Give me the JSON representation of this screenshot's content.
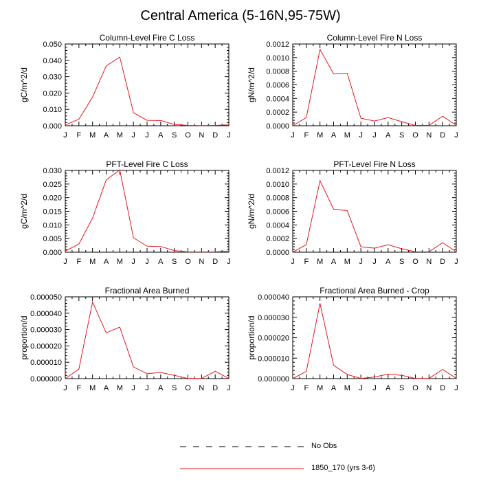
{
  "figure": {
    "title": "Central America (5-16N,95-75W)",
    "legend": [
      {
        "label": "No Obs",
        "style": "dashed",
        "color": "#000000"
      },
      {
        "label": "1850_170 (yrs 3-6)",
        "style": "solid",
        "color": "#e8141a"
      }
    ]
  },
  "chart_data": [
    {
      "type": "line",
      "title": "Column-Level Fire C Loss",
      "ylabel": "gC/m^2/d",
      "categories": [
        "J",
        "F",
        "M",
        "A",
        "M",
        "J",
        "J",
        "A",
        "S",
        "O",
        "N",
        "D",
        "J"
      ],
      "ylim": [
        0,
        0.05
      ],
      "yticks": [
        0,
        0.01,
        0.02,
        0.03,
        0.04,
        0.05
      ],
      "ytick_labels": [
        "0.000",
        "0.010",
        "0.020",
        "0.030",
        "0.040",
        "0.050"
      ],
      "series": [
        {
          "values": [
            0.0005,
            0.004,
            0.0175,
            0.0365,
            0.042,
            0.008,
            0.0033,
            0.0032,
            0.0008,
            0.0002,
            0.0001,
            0.0002,
            0.0005
          ]
        }
      ]
    },
    {
      "type": "line",
      "title": "Column-Level Fire N Loss",
      "ylabel": "gN/m^2/d",
      "categories": [
        "J",
        "F",
        "M",
        "A",
        "M",
        "J",
        "J",
        "A",
        "S",
        "O",
        "N",
        "D",
        "J"
      ],
      "ylim": [
        0,
        0.0012
      ],
      "yticks": [
        0,
        0.0002,
        0.0004,
        0.0006,
        0.0008,
        0.001,
        0.0012
      ],
      "ytick_labels": [
        "0.0000",
        "0.0002",
        "0.0004",
        "0.0006",
        "0.0008",
        "0.0010",
        "0.0012"
      ],
      "series": [
        {
          "values": [
            0.0,
            0.00012,
            0.00112,
            0.00076,
            0.00077,
            0.00011,
            7e-05,
            0.00012,
            6e-05,
            5e-06,
            5e-06,
            0.00014,
            5e-06
          ]
        }
      ]
    },
    {
      "type": "line",
      "title": "PFT-Level Fire C Loss",
      "ylabel": "gC/m^2/d",
      "categories": [
        "J",
        "F",
        "M",
        "A",
        "M",
        "J",
        "J",
        "A",
        "S",
        "O",
        "N",
        "D",
        "J"
      ],
      "ylim": [
        0,
        0.03
      ],
      "yticks": [
        0,
        0.005,
        0.01,
        0.015,
        0.02,
        0.025,
        0.03
      ],
      "ytick_labels": [
        "0.000",
        "0.005",
        "0.010",
        "0.015",
        "0.020",
        "0.025",
        "0.030"
      ],
      "series": [
        {
          "values": [
            0.0004,
            0.003,
            0.0125,
            0.0265,
            0.0302,
            0.0053,
            0.0022,
            0.0021,
            0.0006,
            0.0001,
            0.0001,
            0.0001,
            0.0004
          ]
        }
      ]
    },
    {
      "type": "line",
      "title": "PFT-Level Fire N Loss",
      "ylabel": "gN/m^2/d",
      "categories": [
        "J",
        "F",
        "M",
        "A",
        "M",
        "J",
        "J",
        "A",
        "S",
        "O",
        "N",
        "D",
        "J"
      ],
      "ylim": [
        0,
        0.0012
      ],
      "yticks": [
        0,
        0.0002,
        0.0004,
        0.0006,
        0.0008,
        0.001,
        0.0012
      ],
      "ytick_labels": [
        "0.0000",
        "0.0002",
        "0.0004",
        "0.0006",
        "0.0008",
        "0.0010",
        "0.0012"
      ],
      "series": [
        {
          "values": [
            0.0,
            0.00011,
            0.00105,
            0.00063,
            0.00061,
            8e-05,
            6e-05,
            0.00011,
            5e-05,
            5e-06,
            5e-06,
            0.00014,
            5e-06
          ]
        }
      ]
    },
    {
      "type": "line",
      "title": "Fractional Area Burned",
      "ylabel": "proportion/d",
      "categories": [
        "J",
        "F",
        "M",
        "A",
        "M",
        "J",
        "J",
        "A",
        "S",
        "O",
        "N",
        "D",
        "J"
      ],
      "ylim": [
        0,
        5e-05
      ],
      "yticks": [
        0,
        1e-05,
        2e-05,
        3e-05,
        4e-05,
        5e-05
      ],
      "ytick_labels": [
        "0.000000",
        "0.000010",
        "0.000020",
        "0.000030",
        "0.000040",
        "0.000050"
      ],
      "series": [
        {
          "values": [
            0.0,
            5.8e-06,
            4.68e-05,
            2.8e-05,
            3.15e-05,
            7.2e-06,
            3e-06,
            3.8e-06,
            2e-06,
            1e-07,
            1e-07,
            4.5e-06,
            1e-07
          ]
        }
      ]
    },
    {
      "type": "line",
      "title": "Fractional Area Burned - Crop",
      "ylabel": "proportion/d",
      "categories": [
        "J",
        "F",
        "M",
        "A",
        "M",
        "J",
        "J",
        "A",
        "S",
        "O",
        "N",
        "D",
        "J"
      ],
      "ylim": [
        0,
        4e-05
      ],
      "yticks": [
        0,
        1e-05,
        2e-05,
        3e-05,
        4e-05
      ],
      "ytick_labels": [
        "0.000000",
        "0.000010",
        "0.000020",
        "0.000030",
        "0.000040"
      ],
      "series": [
        {
          "values": [
            0.0,
            3.5e-06,
            3.68e-05,
            6.5e-06,
            2e-06,
            1e-07,
            8e-07,
            2.2e-06,
            1.6e-06,
            1e-07,
            1e-07,
            4.5e-06,
            1e-07
          ]
        }
      ]
    }
  ]
}
